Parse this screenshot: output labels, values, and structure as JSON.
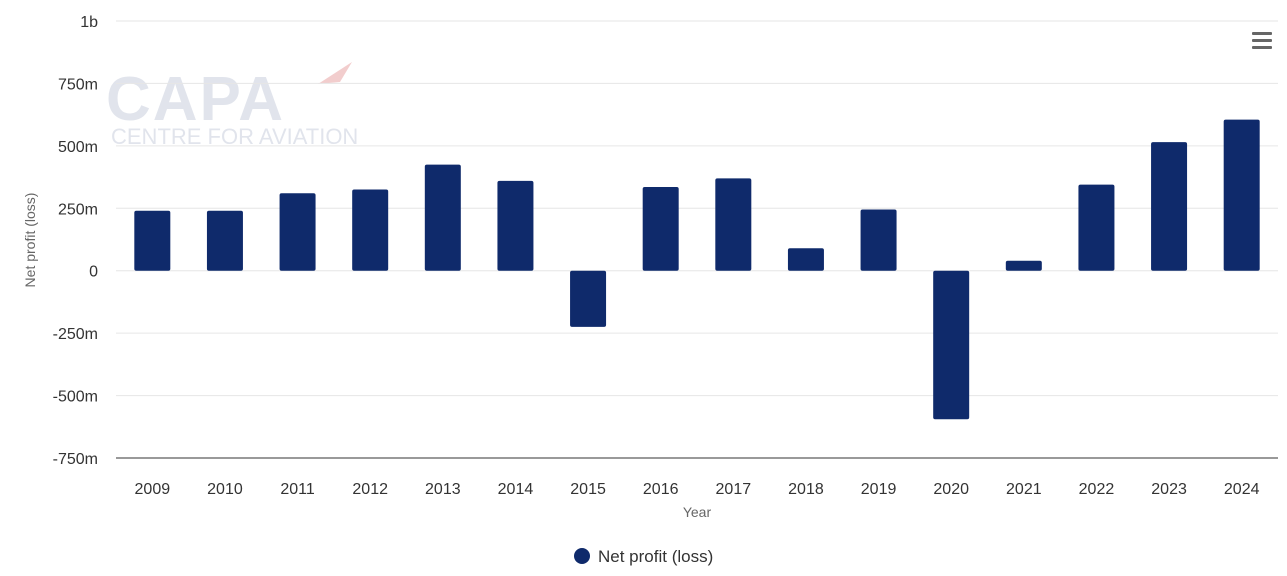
{
  "chart_data": {
    "type": "bar",
    "title": "",
    "xlabel": "Year",
    "ylabel": "Net profit (loss)",
    "categories": [
      "2009",
      "2010",
      "2011",
      "2012",
      "2013",
      "2014",
      "2015",
      "2016",
      "2017",
      "2018",
      "2019",
      "2020",
      "2021",
      "2022",
      "2023",
      "2024"
    ],
    "series": [
      {
        "name": "Net profit (loss)",
        "color": "#0f2a6b",
        "values": [
          240,
          240,
          310,
          325,
          425,
          360,
          -225,
          335,
          370,
          90,
          245,
          -595,
          40,
          345,
          515,
          605
        ]
      }
    ],
    "value_unit": "m",
    "ylim": [
      -750,
      1000
    ],
    "yticks": [
      {
        "value": 1000,
        "label": "1b"
      },
      {
        "value": 750,
        "label": "750m"
      },
      {
        "value": 500,
        "label": "500m"
      },
      {
        "value": 250,
        "label": "250m"
      },
      {
        "value": 0,
        "label": "0"
      },
      {
        "value": -250,
        "label": "-250m"
      },
      {
        "value": -500,
        "label": "-500m"
      },
      {
        "value": -750,
        "label": "-750m"
      }
    ],
    "grid": true,
    "legend_position": "bottom-center"
  },
  "watermark": {
    "main": "CAPA",
    "sub": "CENTRE FOR AVIATION"
  },
  "menu_icon": "hamburger-menu-icon"
}
